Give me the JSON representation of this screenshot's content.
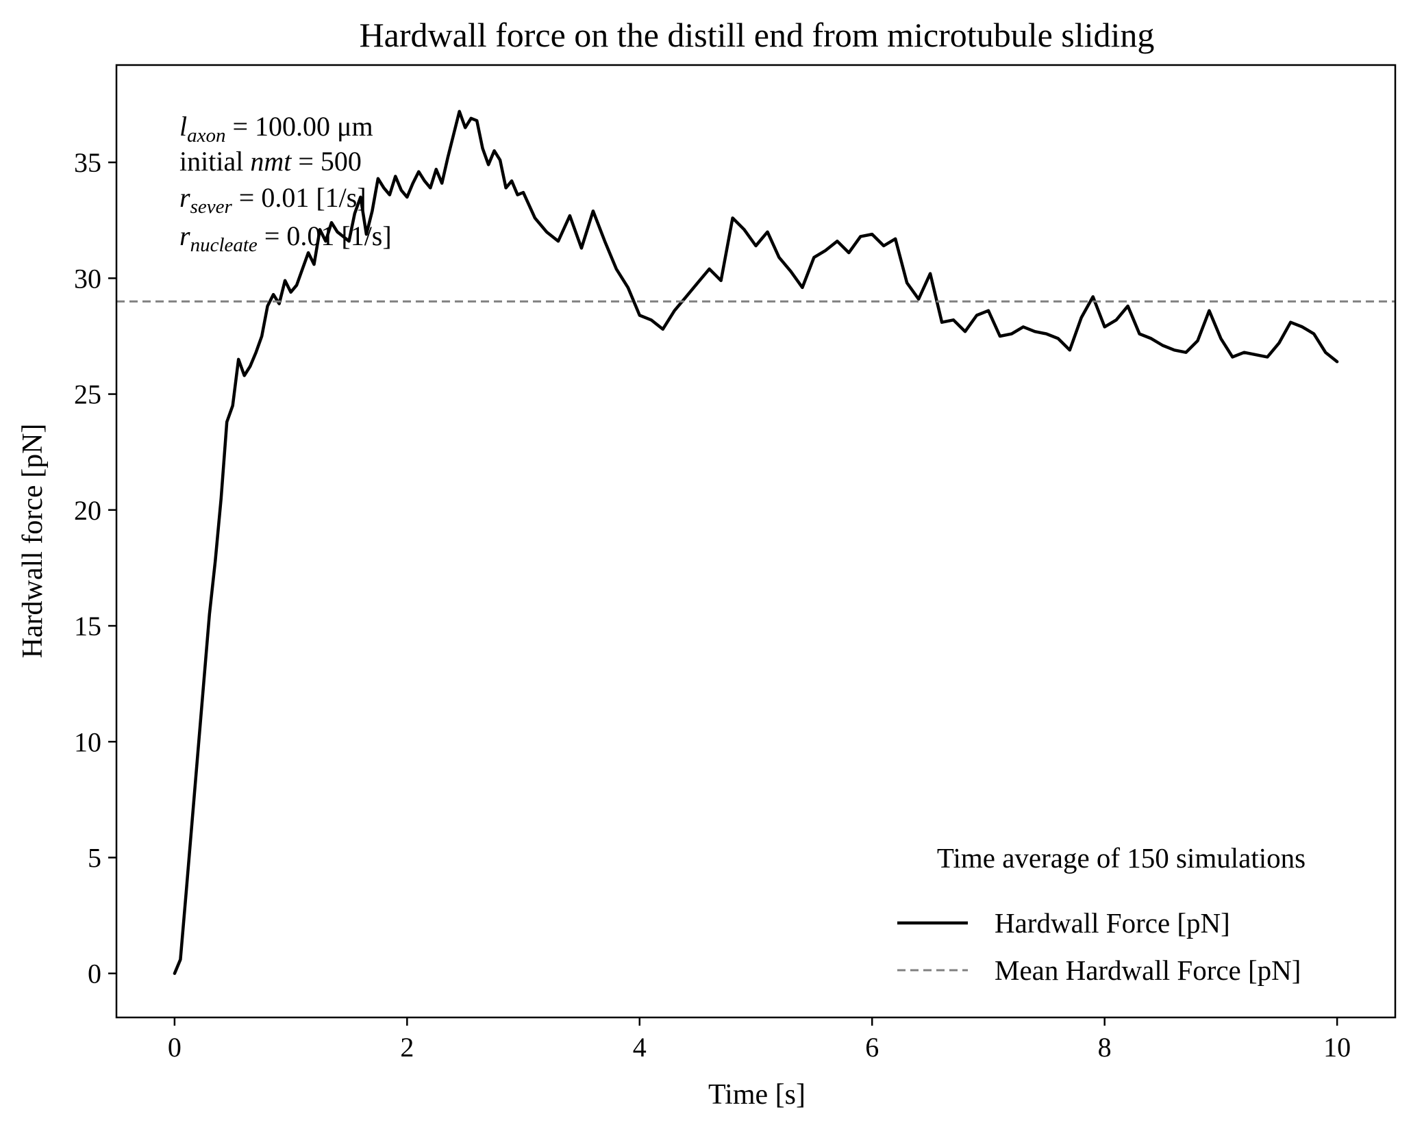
{
  "chart_data": {
    "type": "line",
    "title": "Hardwall force on the distill end from microtubule sliding",
    "xlabel": "Time [s]",
    "ylabel": "Hardwall force [pN]",
    "xlim": [
      -0.5,
      10.5
    ],
    "ylim": [
      -1.9,
      39.2
    ],
    "xticks": [
      0,
      2,
      4,
      6,
      8,
      10
    ],
    "yticks": [
      0,
      5,
      10,
      15,
      20,
      25,
      30,
      35
    ],
    "grid": false,
    "legend": {
      "placement": "bottom-right",
      "title": "Time average of 150 simulations",
      "entries": [
        "Hardwall Force [pN]",
        "Mean Hardwall Force [pN]"
      ]
    },
    "annotations": [
      {
        "var": "l",
        "sub": "axon",
        "rest": " = 100.00 μm"
      },
      {
        "pre": "initial ",
        "var": "nmt",
        "rest": " = 500"
      },
      {
        "var": "r",
        "sub": "sever",
        "rest": " = 0.01 [1/s]"
      },
      {
        "var": "r",
        "sub": "nucleate",
        "rest": " = 0.01 [1/s]"
      }
    ],
    "series": [
      {
        "name": "Hardwall Force [pN]",
        "color": "#000000",
        "style": "solid",
        "x": [
          0,
          0.05,
          0.1,
          0.15,
          0.2,
          0.25,
          0.3,
          0.35,
          0.4,
          0.45,
          0.5,
          0.55,
          0.6,
          0.65,
          0.7,
          0.75,
          0.8,
          0.85,
          0.9,
          0.95,
          1.0,
          1.05,
          1.1,
          1.15,
          1.2,
          1.25,
          1.3,
          1.35,
          1.4,
          1.45,
          1.5,
          1.55,
          1.6,
          1.65,
          1.7,
          1.75,
          1.8,
          1.85,
          1.9,
          1.95,
          2.0,
          2.05,
          2.1,
          2.15,
          2.2,
          2.25,
          2.3,
          2.35,
          2.4,
          2.45,
          2.5,
          2.55,
          2.6,
          2.65,
          2.7,
          2.75,
          2.8,
          2.85,
          2.9,
          2.95,
          3.0,
          3.1,
          3.2,
          3.3,
          3.4,
          3.5,
          3.6,
          3.7,
          3.8,
          3.9,
          4.0,
          4.1,
          4.2,
          4.3,
          4.4,
          4.5,
          4.6,
          4.7,
          4.8,
          4.9,
          5.0,
          5.1,
          5.2,
          5.3,
          5.4,
          5.5,
          5.6,
          5.7,
          5.8,
          5.9,
          6.0,
          6.1,
          6.2,
          6.3,
          6.4,
          6.5,
          6.6,
          6.7,
          6.8,
          6.9,
          7.0,
          7.1,
          7.2,
          7.3,
          7.4,
          7.5,
          7.6,
          7.7,
          7.8,
          7.9,
          8.0,
          8.1,
          8.2,
          8.3,
          8.4,
          8.5,
          8.6,
          8.7,
          8.8,
          8.9,
          9.0,
          9.1,
          9.2,
          9.3,
          9.4,
          9.5,
          9.6,
          9.7,
          9.8,
          9.9,
          10.0
        ],
        "y": [
          0,
          0.6,
          3.5,
          6.5,
          9.5,
          12.5,
          15.5,
          17.8,
          20.5,
          23.8,
          24.5,
          26.5,
          25.8,
          26.2,
          26.8,
          27.5,
          28.8,
          29.3,
          28.9,
          29.9,
          29.4,
          29.7,
          30.4,
          31.1,
          30.6,
          32.1,
          31.6,
          32.4,
          32.0,
          31.8,
          31.6,
          32.8,
          33.5,
          31.9,
          32.9,
          34.3,
          33.9,
          33.6,
          34.4,
          33.8,
          33.5,
          34.1,
          34.6,
          34.2,
          33.9,
          34.7,
          34.1,
          35.2,
          36.2,
          37.2,
          36.5,
          36.9,
          36.8,
          35.6,
          34.9,
          35.5,
          35.1,
          33.9,
          34.2,
          33.6,
          33.7,
          32.6,
          32.0,
          31.6,
          32.7,
          31.3,
          32.9,
          31.6,
          30.4,
          29.6,
          28.4,
          28.2,
          27.8,
          28.6,
          29.2,
          29.8,
          30.4,
          29.9,
          32.6,
          32.1,
          31.4,
          32.0,
          30.9,
          30.3,
          29.6,
          30.9,
          31.2,
          31.6,
          31.1,
          31.8,
          31.9,
          31.4,
          31.7,
          29.8,
          29.1,
          30.2,
          28.1,
          28.2,
          27.7,
          28.4,
          28.6,
          27.5,
          27.6,
          27.9,
          27.7,
          27.6,
          27.4,
          26.9,
          28.3,
          29.2,
          27.9,
          28.2,
          28.8,
          27.6,
          27.4,
          27.1,
          26.9,
          26.8,
          27.3,
          28.6,
          27.4,
          26.6,
          26.8,
          26.7,
          26.6,
          27.2,
          28.1,
          27.9,
          27.6,
          26.8,
          26.4
        ]
      },
      {
        "name": "Mean Hardwall Force [pN]",
        "color": "#808080",
        "style": "dashed",
        "y_constant": 29.0
      }
    ]
  }
}
